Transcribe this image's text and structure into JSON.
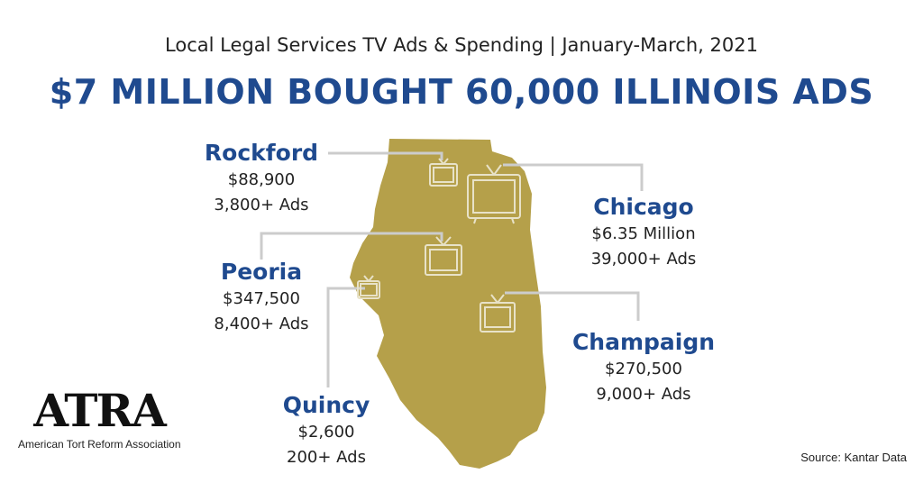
{
  "header": {
    "subtitle": "Local Legal Services TV Ads & Spending | January-March, 2021",
    "headline": "$7 MILLION BOUGHT 60,000 ILLINOIS ADS"
  },
  "colors": {
    "map_fill": "#b5a04a",
    "accent_blue": "#1f4a8f",
    "leader_line": "#cccccc"
  },
  "cities": {
    "rockford": {
      "name": "Rockford",
      "spend": "$88,900",
      "ads": "3,800+ Ads"
    },
    "chicago": {
      "name": "Chicago",
      "spend": "$6.35 Million",
      "ads": "39,000+ Ads"
    },
    "peoria": {
      "name": "Peoria",
      "spend": "$347,500",
      "ads": "8,400+ Ads"
    },
    "champaign": {
      "name": "Champaign",
      "spend": "$270,500",
      "ads": "9,000+ Ads"
    },
    "quincy": {
      "name": "Quincy",
      "spend": "$2,600",
      "ads": "200+ Ads"
    }
  },
  "logo": {
    "mark": "ATRA",
    "organization": "American Tort Reform Association"
  },
  "source": "Source: Kantar Data"
}
